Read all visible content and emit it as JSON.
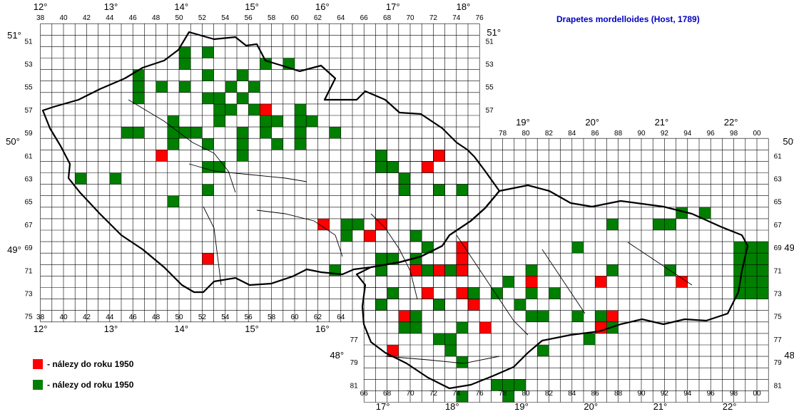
{
  "title": "Drapetes mordelloides (Host, 1789)",
  "legend": [
    {
      "label": "- nálezy do roku 1950",
      "color": "#ff0000"
    },
    {
      "label": "- nálezy od roku 1950",
      "color": "#007f00"
    }
  ],
  "colors": {
    "red": "#ff0000",
    "green": "#007f00",
    "grid": "#000000",
    "border": "#000000"
  },
  "grid": {
    "col_start": 38,
    "col_end": 100,
    "row_start": 50,
    "row_end": 82
  },
  "col_labels_top_west": [
    "38",
    "40",
    "42",
    "44",
    "46",
    "48",
    "50",
    "52",
    "54",
    "56",
    "58",
    "60",
    "62",
    "64",
    "66",
    "68",
    "70",
    "72",
    "74",
    "76"
  ],
  "col_labels_top_east": [
    "78",
    "80",
    "82",
    "84",
    "86",
    "88",
    "90",
    "92",
    "94",
    "96",
    "98",
    "00"
  ],
  "col_labels_bottom_west": [
    "38",
    "40",
    "42",
    "44",
    "46",
    "48",
    "50",
    "52",
    "54",
    "56",
    "58",
    "60",
    "62",
    "64"
  ],
  "col_labels_bottom_east": [
    "66",
    "68",
    "70",
    "72",
    "74",
    "76",
    "78",
    "80",
    "82",
    "84",
    "86",
    "88",
    "90",
    "92",
    "94",
    "96",
    "98",
    "00"
  ],
  "row_labels_left": [
    "51",
    "53",
    "55",
    "57",
    "59",
    "61",
    "63",
    "65",
    "67",
    "69",
    "71",
    "73",
    "75"
  ],
  "row_labels_mid": [
    "51",
    "53",
    "55",
    "57",
    "77",
    "79",
    "81"
  ],
  "row_labels_right": [
    "61",
    "63",
    "65",
    "67",
    "69",
    "71",
    "73",
    "75",
    "77",
    "79",
    "81"
  ],
  "lon_labels_top": [
    "12°",
    "13°",
    "14°",
    "15°",
    "16°",
    "17°",
    "18°"
  ],
  "lon_labels_top_east": [
    "19°",
    "20°",
    "21°",
    "22°"
  ],
  "lon_labels_bottom_west": [
    "12°",
    "13°",
    "14°",
    "15°",
    "16°"
  ],
  "lon_labels_bottom_east": [
    "17°",
    "18°",
    "19°",
    "20°",
    "21°",
    "22°"
  ],
  "lat_labels": {
    "west_51": "51°",
    "mid_51": "51°",
    "west_50": "50°",
    "east_50": "50°",
    "west_49": "49°",
    "east_49": "49°",
    "mid_48": "48°",
    "east_48": "48°"
  },
  "records": {
    "red": [
      [
        72,
        61
      ],
      [
        71,
        62
      ],
      [
        62,
        67
      ],
      [
        67,
        67
      ],
      [
        66,
        68
      ],
      [
        70,
        71
      ],
      [
        72,
        71
      ],
      [
        74,
        71
      ],
      [
        80,
        72
      ],
      [
        86,
        72
      ],
      [
        93,
        72
      ],
      [
        71,
        73
      ],
      [
        74,
        73
      ],
      [
        75,
        74
      ],
      [
        69,
        75
      ],
      [
        87,
        75
      ],
      [
        76,
        76
      ],
      [
        86,
        76
      ],
      [
        68,
        78
      ],
      [
        52,
        70
      ],
      [
        48,
        61
      ],
      [
        57,
        57
      ],
      [
        74,
        70
      ],
      [
        74,
        69
      ]
    ],
    "green": [
      [
        50,
        52
      ],
      [
        52,
        52
      ],
      [
        50,
        53
      ],
      [
        57,
        53
      ],
      [
        59,
        53
      ],
      [
        46,
        54
      ],
      [
        52,
        54
      ],
      [
        55,
        54
      ],
      [
        46,
        55
      ],
      [
        48,
        55
      ],
      [
        50,
        55
      ],
      [
        54,
        55
      ],
      [
        56,
        55
      ],
      [
        46,
        56
      ],
      [
        52,
        56
      ],
      [
        53,
        56
      ],
      [
        55,
        56
      ],
      [
        53,
        57
      ],
      [
        54,
        57
      ],
      [
        56,
        57
      ],
      [
        60,
        57
      ],
      [
        49,
        58
      ],
      [
        53,
        58
      ],
      [
        57,
        58
      ],
      [
        58,
        58
      ],
      [
        60,
        58
      ],
      [
        61,
        58
      ],
      [
        45,
        59
      ],
      [
        46,
        59
      ],
      [
        49,
        59
      ],
      [
        50,
        59
      ],
      [
        51,
        59
      ],
      [
        55,
        59
      ],
      [
        57,
        59
      ],
      [
        60,
        59
      ],
      [
        63,
        59
      ],
      [
        49,
        60
      ],
      [
        52,
        60
      ],
      [
        55,
        60
      ],
      [
        58,
        60
      ],
      [
        60,
        60
      ],
      [
        55,
        61
      ],
      [
        67,
        61
      ],
      [
        52,
        62
      ],
      [
        53,
        62
      ],
      [
        67,
        62
      ],
      [
        68,
        62
      ],
      [
        41,
        63
      ],
      [
        44,
        63
      ],
      [
        69,
        63
      ],
      [
        52,
        64
      ],
      [
        69,
        64
      ],
      [
        72,
        64
      ],
      [
        74,
        64
      ],
      [
        49,
        65
      ],
      [
        65,
        67
      ],
      [
        64,
        67
      ],
      [
        64,
        68
      ],
      [
        70,
        68
      ],
      [
        87,
        67
      ],
      [
        91,
        67
      ],
      [
        92,
        67
      ],
      [
        93,
        66
      ],
      [
        95,
        66
      ],
      [
        84,
        69
      ],
      [
        71,
        69
      ],
      [
        98,
        69
      ],
      [
        99,
        69
      ],
      [
        100,
        69
      ],
      [
        67,
        70
      ],
      [
        68,
        70
      ],
      [
        70,
        70
      ],
      [
        98,
        70
      ],
      [
        99,
        70
      ],
      [
        100,
        70
      ],
      [
        63,
        71
      ],
      [
        67,
        71
      ],
      [
        71,
        71
      ],
      [
        73,
        71
      ],
      [
        80,
        71
      ],
      [
        87,
        71
      ],
      [
        92,
        71
      ],
      [
        98,
        71
      ],
      [
        99,
        71
      ],
      [
        100,
        71
      ],
      [
        78,
        72
      ],
      [
        80,
        72
      ],
      [
        98,
        72
      ],
      [
        99,
        72
      ],
      [
        100,
        72
      ],
      [
        68,
        73
      ],
      [
        77,
        73
      ],
      [
        80,
        73
      ],
      [
        82,
        73
      ],
      [
        98,
        73
      ],
      [
        99,
        73
      ],
      [
        100,
        73
      ],
      [
        75,
        73
      ],
      [
        67,
        74
      ],
      [
        72,
        74
      ],
      [
        79,
        74
      ],
      [
        70,
        75
      ],
      [
        80,
        75
      ],
      [
        81,
        75
      ],
      [
        84,
        75
      ],
      [
        86,
        75
      ],
      [
        69,
        76
      ],
      [
        70,
        76
      ],
      [
        74,
        76
      ],
      [
        72,
        77
      ],
      [
        73,
        77
      ],
      [
        85,
        77
      ],
      [
        87,
        76
      ],
      [
        73,
        78
      ],
      [
        81,
        78
      ],
      [
        74,
        79
      ],
      [
        77,
        81
      ],
      [
        78,
        81
      ],
      [
        79,
        81
      ],
      [
        74,
        82
      ],
      [
        78,
        82
      ]
    ]
  }
}
